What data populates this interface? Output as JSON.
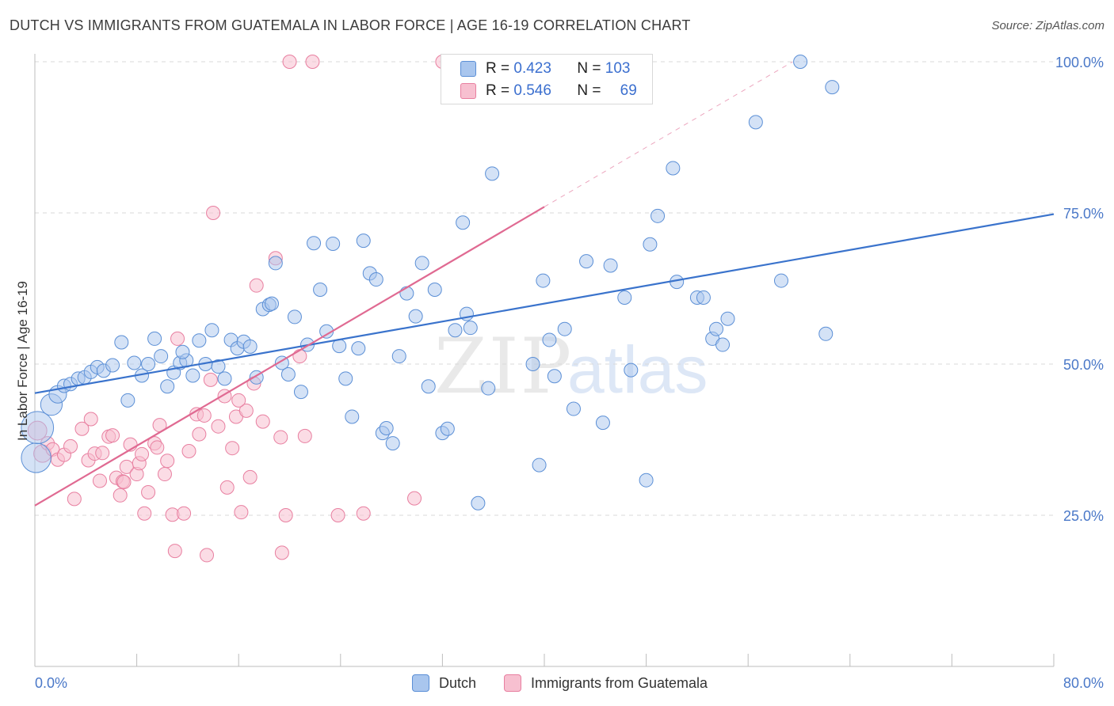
{
  "title": "DUTCH VS IMMIGRANTS FROM GUATEMALA IN LABOR FORCE | AGE 16-19 CORRELATION CHART",
  "source": "Source: ZipAtlas.com",
  "watermark": {
    "zip": "ZIP",
    "atlas": "atlas"
  },
  "legend": {
    "r_label": "R =",
    "n_label": "N =",
    "rows": [
      {
        "r": "0.423",
        "n": "103",
        "color": "#a9c6ee"
      },
      {
        "r": "0.546",
        "n": "69",
        "color": "#f5b7c8"
      }
    ]
  },
  "bottom_legend": [
    {
      "name": "Dutch",
      "color": "#a9c6ee"
    },
    {
      "name": "Immigrants from Guatemala",
      "color": "#f5b7c8"
    }
  ],
  "colors": {
    "dutch_fill": "#a9c6ee",
    "dutch_stroke": "#5b8fd6",
    "dutch_line": "#3a73cc",
    "guat_fill": "#f7c0d0",
    "guat_stroke": "#e87fa0",
    "guat_line": "#e06a92",
    "axis_text": "#4a78c8",
    "grid": "#d9d9d9"
  },
  "chart_data": {
    "type": "scatter",
    "title": "DUTCH VS IMMIGRANTS FROM GUATEMALA IN LABOR FORCE | AGE 16-19 CORRELATION CHART",
    "xlabel": "",
    "ylabel": "In Labor Force | Age 16-19",
    "xlim": [
      0,
      80
    ],
    "ylim": [
      0,
      101
    ],
    "x_tick_labels": [
      "0.0%",
      "80.0%"
    ],
    "y_ticks": [
      25,
      50,
      75,
      100
    ],
    "y_tick_labels": [
      "25.0%",
      "50.0%",
      "75.0%",
      "100.0%"
    ],
    "grid": true,
    "legend_position": "top-center",
    "series": [
      {
        "name": "Dutch",
        "r": 0.423,
        "n": 103,
        "trend": {
          "x": [
            0,
            80
          ],
          "y": [
            45.2,
            74.8
          ]
        },
        "points": [
          [
            0.1,
            34.5,
            2.2
          ],
          [
            0.2,
            39.5,
            2.4
          ],
          [
            1.3,
            43.3,
            1.6
          ],
          [
            1.8,
            45.0,
            1.3
          ],
          [
            2.3,
            46.4,
            1.0
          ],
          [
            2.8,
            46.7,
            1.0
          ],
          [
            3.4,
            47.6,
            1.0
          ],
          [
            3.9,
            47.8,
            1.0
          ],
          [
            4.4,
            48.7,
            1.0
          ],
          [
            4.9,
            49.5,
            1.0
          ],
          [
            5.4,
            48.9,
            1.0
          ],
          [
            6.1,
            49.8,
            1.0
          ],
          [
            6.8,
            53.6,
            1.0
          ],
          [
            7.3,
            44.0,
            1.0
          ],
          [
            7.8,
            50.2,
            1.0
          ],
          [
            8.4,
            48.1,
            1.0
          ],
          [
            8.9,
            50.0,
            1.0
          ],
          [
            9.4,
            54.2,
            1.0
          ],
          [
            9.9,
            51.3,
            1.0
          ],
          [
            10.4,
            46.3,
            1.0
          ],
          [
            10.9,
            48.6,
            1.0
          ],
          [
            11.4,
            50.2,
            1.0
          ],
          [
            11.9,
            50.6,
            1.0
          ],
          [
            12.4,
            48.1,
            1.0
          ],
          [
            12.9,
            53.9,
            1.0
          ],
          [
            13.4,
            50.0,
            1.0
          ],
          [
            13.9,
            55.6,
            1.0
          ],
          [
            14.4,
            49.6,
            1.0
          ],
          [
            14.9,
            47.6,
            1.0
          ],
          [
            15.4,
            54.0,
            1.0
          ],
          [
            15.9,
            52.6,
            1.0
          ],
          [
            16.4,
            53.7,
            1.0
          ],
          [
            16.9,
            52.9,
            1.0
          ],
          [
            17.4,
            47.8,
            1.0
          ],
          [
            17.9,
            59.1,
            1.0
          ],
          [
            18.4,
            59.8,
            1.0
          ],
          [
            18.9,
            66.7,
            1.0
          ],
          [
            19.4,
            50.2,
            1.0
          ],
          [
            19.9,
            48.3,
            1.0
          ],
          [
            20.4,
            57.8,
            1.0
          ],
          [
            20.9,
            45.4,
            1.0
          ],
          [
            21.4,
            53.2,
            1.0
          ],
          [
            21.9,
            70.0,
            1.0
          ],
          [
            22.4,
            62.3,
            1.0
          ],
          [
            22.9,
            55.4,
            1.0
          ],
          [
            23.4,
            69.9,
            1.0
          ],
          [
            23.9,
            53.0,
            1.0
          ],
          [
            24.4,
            47.6,
            1.0
          ],
          [
            24.9,
            41.3,
            1.0
          ],
          [
            25.4,
            52.6,
            1.0
          ],
          [
            25.8,
            70.4,
            1.0
          ],
          [
            26.3,
            65.0,
            1.0
          ],
          [
            26.8,
            64.0,
            1.0
          ],
          [
            27.3,
            38.6,
            1.0
          ],
          [
            27.6,
            39.4,
            1.0
          ],
          [
            28.1,
            36.9,
            1.0
          ],
          [
            28.6,
            51.3,
            1.0
          ],
          [
            29.2,
            61.7,
            1.0
          ],
          [
            29.9,
            57.9,
            1.0
          ],
          [
            30.4,
            66.7,
            1.0
          ],
          [
            30.9,
            46.3,
            1.0
          ],
          [
            31.4,
            62.3,
            1.0
          ],
          [
            32.0,
            38.6,
            1.0
          ],
          [
            32.4,
            39.3,
            1.0
          ],
          [
            33.0,
            55.6,
            1.0
          ],
          [
            33.6,
            73.4,
            1.0
          ],
          [
            33.9,
            58.3,
            1.0
          ],
          [
            34.2,
            56.0,
            1.0
          ],
          [
            34.8,
            27.0,
            1.0
          ],
          [
            35.6,
            46.0,
            1.0
          ],
          [
            35.9,
            81.5,
            1.0
          ],
          [
            39.1,
            50.0,
            1.0
          ],
          [
            39.6,
            33.3,
            1.0
          ],
          [
            39.9,
            63.8,
            1.0
          ],
          [
            40.4,
            54.0,
            1.0
          ],
          [
            40.8,
            48.0,
            1.0
          ],
          [
            41.6,
            55.8,
            1.0
          ],
          [
            42.3,
            42.6,
            1.0
          ],
          [
            43.3,
            67.0,
            1.0
          ],
          [
            44.6,
            40.3,
            1.0
          ],
          [
            45.2,
            66.3,
            1.0
          ],
          [
            46.3,
            61.0,
            1.0
          ],
          [
            46.8,
            49.0,
            1.0
          ],
          [
            48.0,
            30.8,
            1.0
          ],
          [
            48.3,
            69.8,
            1.0
          ],
          [
            48.9,
            74.5,
            1.0
          ],
          [
            50.1,
            82.4,
            1.0
          ],
          [
            50.4,
            63.6,
            1.0
          ],
          [
            52.0,
            61.0,
            1.0
          ],
          [
            52.5,
            61.0,
            1.0
          ],
          [
            53.2,
            54.2,
            1.0
          ],
          [
            53.5,
            55.8,
            1.0
          ],
          [
            54.0,
            53.2,
            1.0
          ],
          [
            54.4,
            57.5,
            1.0
          ],
          [
            56.6,
            90.0,
            1.0
          ],
          [
            58.6,
            63.8,
            1.0
          ],
          [
            60.1,
            100.0,
            1.0
          ],
          [
            62.1,
            55.0,
            1.0
          ],
          [
            62.6,
            95.8,
            1.0
          ],
          [
            18.6,
            60.0,
            1.0
          ],
          [
            11.6,
            52.0,
            1.0
          ]
        ]
      },
      {
        "name": "Immigrants from Guatemala",
        "r": 0.546,
        "n": 69,
        "trend": {
          "x": [
            0,
            40
          ],
          "y": [
            26.6,
            76.0
          ]
        },
        "trend_extension": {
          "x": [
            40,
            59.5
          ],
          "y": [
            76.0,
            100.0
          ]
        },
        "points": [
          [
            0.2,
            39.0,
            1.4
          ],
          [
            0.6,
            35.2,
            1.3
          ],
          [
            1.0,
            36.9,
            1.0
          ],
          [
            1.4,
            35.9,
            1.0
          ],
          [
            1.8,
            34.2,
            1.0
          ],
          [
            2.3,
            35.0,
            1.0
          ],
          [
            2.8,
            36.4,
            1.0
          ],
          [
            3.1,
            27.7,
            1.0
          ],
          [
            3.7,
            39.3,
            1.0
          ],
          [
            4.2,
            34.1,
            1.0
          ],
          [
            4.4,
            40.9,
            1.0
          ],
          [
            4.7,
            35.2,
            1.0
          ],
          [
            5.1,
            30.7,
            1.0
          ],
          [
            5.3,
            35.3,
            1.0
          ],
          [
            5.8,
            38.0,
            1.0
          ],
          [
            6.1,
            38.2,
            1.0
          ],
          [
            6.4,
            31.2,
            1.0
          ],
          [
            6.7,
            28.3,
            1.0
          ],
          [
            6.9,
            30.6,
            1.0
          ],
          [
            7.2,
            33.0,
            1.0
          ],
          [
            7.5,
            36.7,
            1.0
          ],
          [
            8.0,
            31.8,
            1.0
          ],
          [
            8.2,
            33.6,
            1.0
          ],
          [
            8.4,
            35.1,
            1.0
          ],
          [
            8.6,
            25.3,
            1.0
          ],
          [
            8.9,
            28.8,
            1.0
          ],
          [
            9.4,
            36.9,
            1.0
          ],
          [
            9.8,
            39.9,
            1.0
          ],
          [
            10.2,
            31.8,
            1.0
          ],
          [
            10.4,
            34.0,
            1.0
          ],
          [
            10.8,
            25.1,
            1.0
          ],
          [
            11.0,
            19.1,
            1.0
          ],
          [
            11.2,
            54.2,
            1.0
          ],
          [
            11.7,
            25.3,
            1.0
          ],
          [
            12.1,
            35.6,
            1.0
          ],
          [
            12.7,
            41.7,
            1.0
          ],
          [
            13.3,
            41.5,
            1.0
          ],
          [
            13.5,
            18.4,
            1.0
          ],
          [
            13.8,
            47.4,
            1.0
          ],
          [
            14.0,
            75.0,
            1.0
          ],
          [
            14.4,
            39.7,
            1.0
          ],
          [
            14.9,
            44.7,
            1.0
          ],
          [
            15.1,
            29.6,
            1.0
          ],
          [
            15.5,
            36.1,
            1.0
          ],
          [
            15.8,
            41.3,
            1.0
          ],
          [
            16.2,
            25.5,
            1.0
          ],
          [
            16.6,
            42.3,
            1.0
          ],
          [
            16.9,
            31.3,
            1.0
          ],
          [
            17.2,
            46.8,
            1.0
          ],
          [
            17.4,
            63.0,
            1.0
          ],
          [
            17.9,
            40.5,
            1.0
          ],
          [
            18.9,
            67.5,
            1.0
          ],
          [
            19.3,
            37.9,
            1.0
          ],
          [
            19.4,
            18.8,
            1.0
          ],
          [
            19.7,
            25.0,
            1.0
          ],
          [
            20.0,
            100.0,
            1.0
          ],
          [
            20.8,
            51.3,
            1.0
          ],
          [
            21.2,
            38.1,
            1.0
          ],
          [
            21.8,
            100.0,
            1.0
          ],
          [
            23.8,
            25.0,
            1.0
          ],
          [
            25.8,
            25.3,
            1.0
          ],
          [
            29.8,
            27.8,
            1.0
          ],
          [
            32.0,
            100.0,
            1.0
          ],
          [
            33.0,
            100.0,
            1.0
          ],
          [
            37.5,
            100.0,
            1.0
          ],
          [
            16.0,
            44.0,
            1.0
          ],
          [
            7.0,
            30.5,
            1.0
          ],
          [
            12.9,
            38.4,
            1.0
          ],
          [
            9.6,
            36.2,
            1.0
          ]
        ]
      }
    ]
  }
}
